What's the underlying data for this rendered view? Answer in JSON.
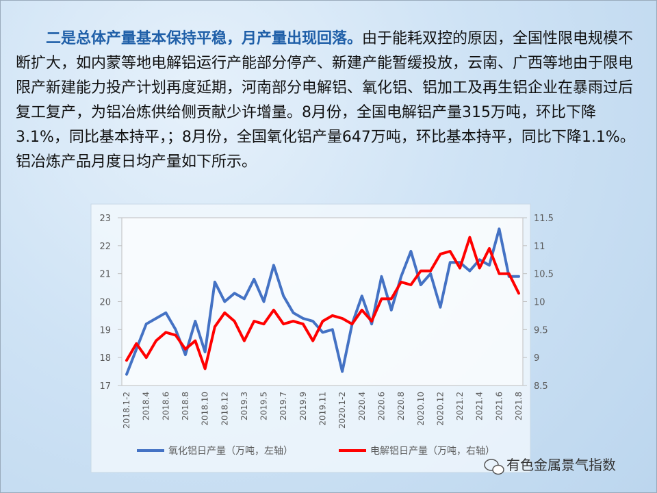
{
  "chart_data": {
    "type": "line",
    "lead": "二是总体产量基本保持平稳，月产量出现回落。",
    "body": "由于能耗双控的原因，全国性限电规模不断扩大，如内蒙等地电解铝运行产能部分停产、新建产能暂缓投放，云南、广西等地由于限电限产新建能力投产计划再度延期，河南部分电解铝、氧化铝、铝加工及再生铝企业在暴雨过后复工复产，为铝冶炼供给侧贡献少许增量。8月份，全国电解铝产量315万吨，环比下降3.1%，同比基本持平，；8月份，全国氧化铝产量647万吨，环比基本持平，同比下降1.1%。铝冶炼产品月度日均产量如下所示。",
    "watermark": "有色金属景气指数",
    "categories": [
      "2018.1-2",
      null,
      "2018.4",
      null,
      "2018.6",
      null,
      "2018.8",
      null,
      "2018.10",
      null,
      "2018.12",
      null,
      "2019.3",
      null,
      "2019.5",
      null,
      "2019.7",
      null,
      "2019.9",
      null,
      "2019.11",
      null,
      "2020.1-2",
      null,
      "2020.4",
      null,
      "2020.6",
      null,
      "2020.8",
      null,
      "2020.10",
      null,
      "2020.12",
      null,
      "2021.2",
      null,
      "2021.4",
      null,
      "2021.6",
      null,
      "2021.8"
    ],
    "series": [
      {
        "name": "氧化铝日产量（万吨，左轴）",
        "color": "#4472c4",
        "axis": "y",
        "values": [
          17.4,
          18.3,
          19.2,
          19.4,
          19.6,
          19.0,
          18.1,
          19.3,
          18.2,
          20.7,
          20.0,
          20.3,
          20.1,
          20.8,
          20.0,
          21.3,
          20.2,
          19.6,
          19.4,
          19.3,
          18.9,
          19.0,
          17.5,
          19.2,
          20.2,
          19.2,
          20.9,
          19.7,
          20.9,
          21.8,
          20.6,
          21.0,
          19.8,
          21.4,
          21.4,
          21.1,
          21.5,
          21.3,
          22.6,
          20.9,
          20.9
        ]
      },
      {
        "name": "电解铝日产量（万吨，右轴）",
        "color": "#ff0000",
        "axis": "y2",
        "values": [
          8.95,
          9.25,
          9.0,
          9.3,
          9.45,
          9.4,
          9.15,
          9.3,
          8.8,
          9.55,
          9.8,
          9.65,
          9.3,
          9.65,
          9.6,
          9.85,
          9.6,
          9.65,
          9.6,
          9.3,
          9.65,
          9.75,
          9.7,
          9.6,
          9.85,
          9.65,
          10.05,
          10.05,
          10.35,
          10.3,
          10.55,
          10.55,
          10.85,
          10.9,
          10.6,
          11.15,
          10.6,
          10.95,
          10.5,
          10.5,
          10.15
        ]
      }
    ],
    "ylim": [
      17,
      23
    ],
    "yticks": [
      17,
      18,
      19,
      20,
      21,
      22,
      23
    ],
    "y2lim": [
      8.5,
      11.5
    ],
    "y2ticks": [
      8.5,
      9,
      9.5,
      10,
      10.5,
      11,
      11.5
    ],
    "legend": "bottom"
  }
}
